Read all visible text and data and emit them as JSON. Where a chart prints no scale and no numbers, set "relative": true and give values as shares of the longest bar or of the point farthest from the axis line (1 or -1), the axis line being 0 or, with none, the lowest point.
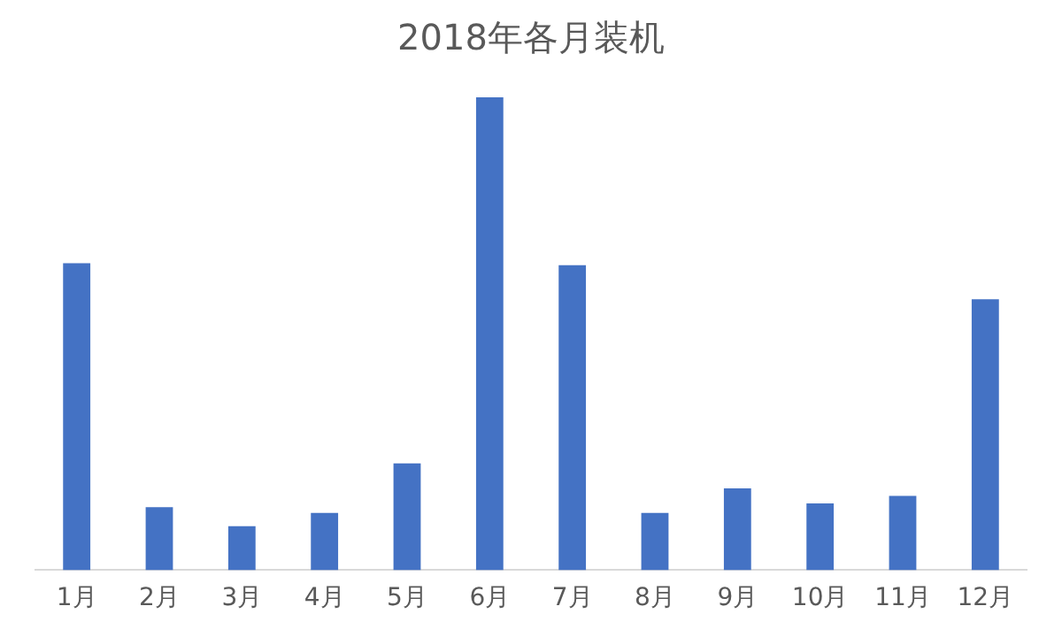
{
  "chart_data": {
    "type": "bar",
    "title": "2018年各月装机",
    "categories": [
      "1月",
      "2月",
      "3月",
      "4月",
      "5月",
      "6月",
      "7月",
      "8月",
      "9月",
      "10月",
      "11月",
      "12月"
    ],
    "values": [
      0.649,
      0.133,
      0.093,
      0.121,
      0.226,
      1,
      0.645,
      0.121,
      0.173,
      0.141,
      0.157,
      0.573
    ],
    "color": "#4472c4",
    "relative": true,
    "grid": false,
    "legend": false
  }
}
